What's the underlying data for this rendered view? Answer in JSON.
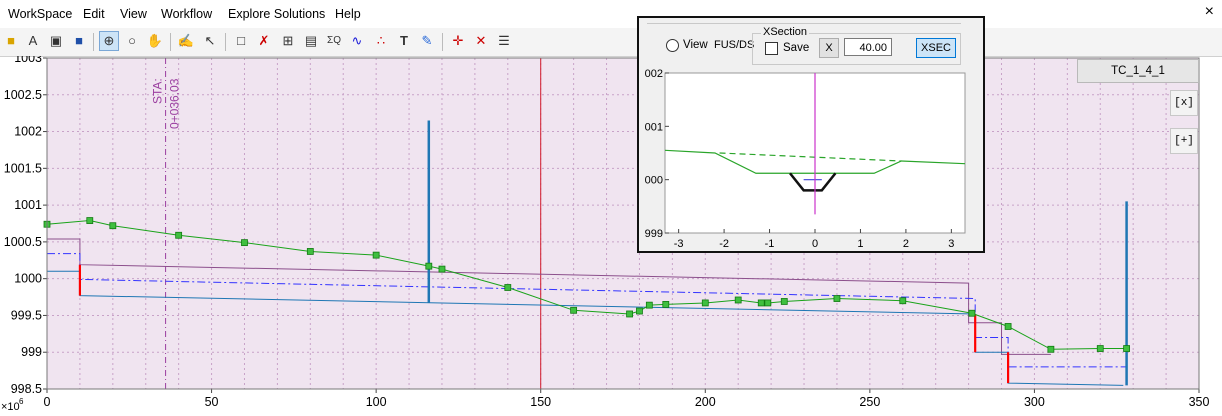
{
  "menubar": {
    "items": [
      "WorkSpace",
      "Edit",
      "View",
      "Workflow",
      "Explore Solutions",
      "Help"
    ],
    "close": "×"
  },
  "toolbar": {
    "icons": [
      "open-folder-icon",
      "text-import-icon",
      "image-icon",
      "save-icon",
      "zoom-in-icon",
      "zoom-icon",
      "pan-hand-icon",
      "select-icon",
      "pointer-add-icon",
      "new-page-icon",
      "edit-line-icon",
      "grid-icon",
      "table-icon",
      "sigma-q-icon",
      "profile-line-icon",
      "points-icon",
      "text-icon",
      "paint-icon",
      "crosshair-icon",
      "delete-icon",
      "list-icon"
    ]
  },
  "main_plot": {
    "y_ticks": [
      "1003",
      "1002.5",
      "1002",
      "1001.5",
      "1001",
      "1000.5",
      "1000",
      "999.5",
      "999",
      "998.5"
    ],
    "y_exponent": "×10",
    "y_exponent_power": "6",
    "x_ticks": [
      "0",
      "50",
      "100",
      "150",
      "200",
      "250",
      "300",
      "350"
    ],
    "station_label_1": "STA:",
    "station_label_2": "0+036.03",
    "colors": {
      "background": "#f0e4f0",
      "grid": "#c8a2c8",
      "green": "#1aa31a",
      "blue": "#1f77b4",
      "red": "#ff0000",
      "purple": "#8c4f8c",
      "dashdot": "#3333ff"
    }
  },
  "chart_data": {
    "type": "line",
    "xlabel": "",
    "ylabel": "",
    "xlim": [
      0,
      350
    ],
    "ylim": [
      998.5,
      1003
    ],
    "grid": true,
    "station_marker_x": 36.03,
    "vertical_line_x": 150,
    "series": [
      {
        "x": [
          0,
          13,
          20,
          40,
          60,
          80,
          100,
          116,
          120,
          140,
          160,
          177,
          180,
          183,
          188,
          200,
          210,
          217,
          219,
          224,
          240,
          260,
          281,
          292,
          305,
          320,
          328
        ],
        "y": [
          1000.74,
          1000.79,
          1000.72,
          1000.59,
          1000.49,
          1000.37,
          1000.32,
          1000.17,
          1000.13,
          999.88,
          999.57,
          999.52,
          999.56,
          999.64,
          999.65,
          999.67,
          999.71,
          999.67,
          999.67,
          999.69,
          999.73,
          999.7,
          999.53,
          999.35,
          999.04,
          999.05,
          999.05
        ]
      },
      {
        "x": [
          0,
          10,
          10,
          282,
          282,
          292,
          292,
          327
        ],
        "y": [
          1000.1,
          1000.1,
          999.77,
          999.52,
          999.0,
          999.0,
          998.58,
          998.55
        ]
      },
      {
        "x": [
          0,
          10,
          10,
          280,
          280,
          290,
          290,
          305
        ],
        "y": [
          1000.54,
          1000.54,
          1000.19,
          999.94,
          999.4,
          999.4,
          998.97,
          998.97
        ]
      },
      {
        "x": [
          0,
          10,
          10,
          282,
          282,
          292,
          292,
          328
        ],
        "y": [
          1000.34,
          1000.34,
          999.99,
          999.73,
          999.2,
          999.2,
          998.8,
          998.8
        ]
      },
      {
        "x": [
          116,
          116
        ],
        "y": [
          999.67,
          1002.15
        ]
      },
      {
        "x": [
          328,
          328
        ],
        "y": [
          998.55,
          1001.05
        ]
      }
    ]
  },
  "tc_label": "TC_1_4_1",
  "right_buttons": {
    "collapse": "[x]",
    "expand": "[+]"
  },
  "xsec": {
    "group_title": "XSection",
    "view_label": "View",
    "fus_label": "FUS/DS",
    "save_label": "Save",
    "x_button": "X",
    "x_value": "40.00",
    "xsec_button": "XSEC",
    "y_ticks": [
      "002",
      "001",
      "000",
      "999"
    ],
    "x_ticks": [
      "-3",
      "-2",
      "-1",
      "0",
      "1",
      "2",
      "3"
    ],
    "chart_data": {
      "type": "line",
      "xlim": [
        -3.3,
        3.3
      ],
      "ylim": [
        999,
        1002
      ],
      "ground": {
        "x": [
          -3.3,
          -2.2,
          -1.3,
          -0.5,
          0.5,
          1.3,
          1.9,
          3.3
        ],
        "y": [
          1000.55,
          1000.5,
          1000.12,
          1000.12,
          1000.12,
          1000.12,
          1000.35,
          1000.3
        ]
      },
      "design": {
        "x": [
          -2.1,
          1.9
        ],
        "y": [
          1000.5,
          1000.35
        ]
      },
      "channel": {
        "x": [
          -0.55,
          -0.25,
          0.15,
          0.45
        ],
        "y": [
          1000.12,
          999.8,
          999.8,
          1000.12
        ]
      },
      "centerline_x": 0
    }
  }
}
